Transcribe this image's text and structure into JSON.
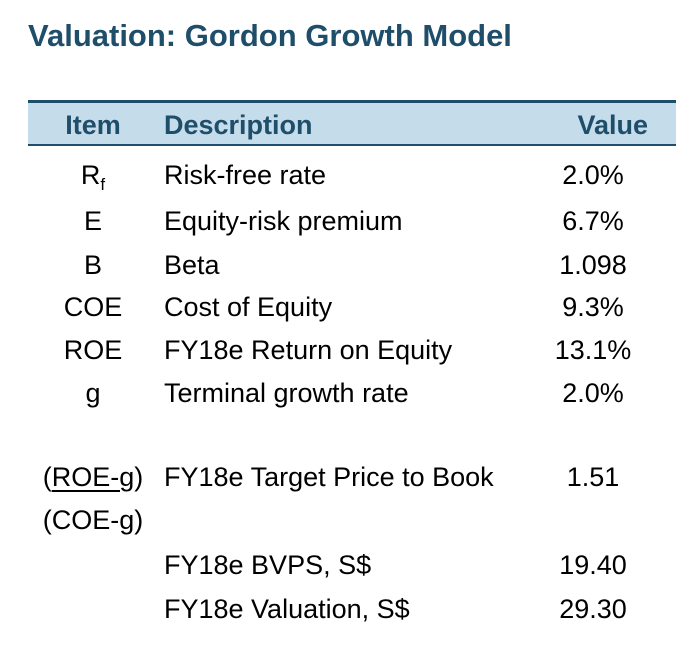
{
  "title": "Valuation: Gordon Growth Model",
  "table": {
    "headers": {
      "item": "Item",
      "description": "Description",
      "value": "Value"
    },
    "rows": [
      {
        "item_main": "R",
        "item_sub": "f",
        "description": "Risk-free rate",
        "value": "2.0%"
      },
      {
        "item": "E",
        "description": "Equity-risk premium",
        "value": "6.7%"
      },
      {
        "item": "B",
        "description": "Beta",
        "value": "1.098"
      },
      {
        "item": "COE",
        "description": "Cost of Equity",
        "value": "9.3%"
      },
      {
        "item": "ROE",
        "description": "FY18e Return on Equity",
        "value": "13.1%"
      },
      {
        "item": "g",
        "description": "Terminal growth rate",
        "value": "2.0%"
      }
    ],
    "ratio_row": {
      "numerator_open": "(",
      "numerator": "ROE-g",
      "numerator_close": ")",
      "denominator": "(COE-g)",
      "description": "FY18e Target Price to Book",
      "value": "1.51"
    },
    "bottom_rows": [
      {
        "description": "FY18e BVPS, S$",
        "value": "19.40"
      },
      {
        "description": "FY18e Valuation, S$",
        "value": "29.30"
      }
    ]
  }
}
